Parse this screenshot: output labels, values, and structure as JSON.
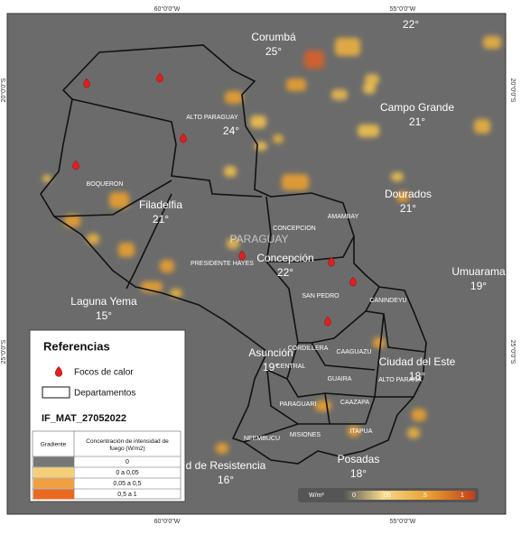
{
  "coordinates": {
    "top": [
      "60°0'0\"W",
      "55°0'0\"W"
    ],
    "bottom": [
      "60°0'0\"W",
      "55°0'0\"W"
    ],
    "left": [
      "20°0'0\"S",
      "25°0'0\"S"
    ],
    "right": [
      "20°0'0\"S",
      "25°0'0\"S"
    ]
  },
  "country": "PARAGUAY",
  "cities": [
    {
      "name": "Corumbá",
      "temp": "25°"
    },
    {
      "name": "Campo Grande",
      "temp": "21°"
    },
    {
      "name": "Dourados",
      "temp": "21°"
    },
    {
      "name": "Filadelfia",
      "temp": "21°"
    },
    {
      "name": "Umuarama",
      "temp": "19°"
    },
    {
      "name": "Laguna Yema",
      "temp": "15°"
    },
    {
      "name": "Concepción",
      "temp": "22°"
    },
    {
      "name": "Asunción",
      "temp": "19°"
    },
    {
      "name": "Ciudad del Este",
      "temp": "18°"
    },
    {
      "name": "Posadas",
      "temp": "18°"
    },
    {
      "name": "d de Resistencia",
      "temp": "16°"
    }
  ],
  "extra_temps": [
    "24°",
    "22°"
  ],
  "departments": [
    "ALTO PARAGUAY",
    "BOQUERON",
    "PRESIDENTE HAYES",
    "CONCEPCION",
    "AMAMBAY",
    "SAN PEDRO",
    "CANINDEYU",
    "CORDILLERA",
    "CAAGUAZU",
    "CENTRAL",
    "GUAIRA",
    "ALTO PARANA",
    "PARAGUARI",
    "CAAZAPA",
    "ITAPUA",
    "NEEMBUCU",
    "MISIONES"
  ],
  "legend": {
    "title": "Referencias",
    "fires": "Focos de calor",
    "departments": "Departamentos",
    "layer": "IF_MAT_27052022",
    "header": [
      "Gradiente",
      "Concentración de intensidad de fuego (W/m2)"
    ],
    "rows": [
      "0",
      "0 a 0,05",
      "0,05 a 0,5",
      "0,5 a 1"
    ]
  },
  "colorbar": {
    "unit": "W/m²",
    "ticks": [
      "0",
      ".05",
      ".5",
      "1"
    ]
  }
}
